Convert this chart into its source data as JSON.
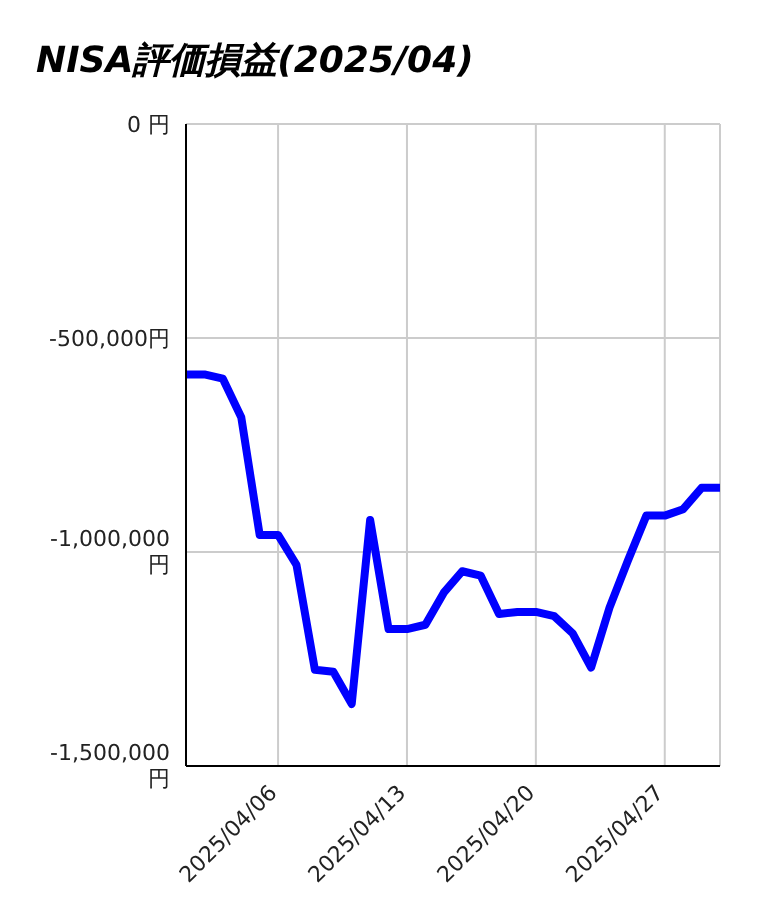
{
  "chart_data": {
    "type": "line",
    "title": "NISA評価損益(2025/04)",
    "x": [
      "2025-04-01",
      "2025-04-02",
      "2025-04-03",
      "2025-04-04",
      "2025-04-05",
      "2025-04-06",
      "2025-04-07",
      "2025-04-08",
      "2025-04-09",
      "2025-04-10",
      "2025-04-11",
      "2025-04-12",
      "2025-04-13",
      "2025-04-14",
      "2025-04-15",
      "2025-04-16",
      "2025-04-17",
      "2025-04-18",
      "2025-04-19",
      "2025-04-20",
      "2025-04-21",
      "2025-04-22",
      "2025-04-23",
      "2025-04-24",
      "2025-04-25",
      "2025-04-26",
      "2025-04-27",
      "2025-04-28",
      "2025-04-29",
      "2025-04-30"
    ],
    "series": [
      {
        "color": "#0000ff",
        "values": [
          -585000,
          -585000,
          -595000,
          -685000,
          -960000,
          -960000,
          -1030000,
          -1275000,
          -1280000,
          -1355000,
          -925000,
          -1180000,
          -1180000,
          -1170000,
          -1095000,
          -1045000,
          -1055000,
          -1145000,
          -1140000,
          -1140000,
          -1150000,
          -1190000,
          -1270000,
          -1130000,
          -1020000,
          -915000,
          -915000,
          -900000,
          -850000,
          -850000
        ]
      }
    ],
    "xlim": [
      "2025-04-01",
      "2025-04-30"
    ],
    "xticks": [
      {
        "value": "2025-04-06",
        "label": "2025/04/06"
      },
      {
        "value": "2025-04-13",
        "label": "2025/04/13"
      },
      {
        "value": "2025-04-20",
        "label": "2025/04/20"
      },
      {
        "value": "2025-04-27",
        "label": "2025/04/27"
      }
    ],
    "ylim": [
      -1500000,
      0
    ],
    "yticks": [
      {
        "value": 0,
        "label": "0 円"
      },
      {
        "value": -500000,
        "label": "-500,000円"
      },
      {
        "value": -1000000,
        "label": "-1,000,000円"
      },
      {
        "value": -1500000,
        "label": "-1,500,000円"
      }
    ],
    "grid": true,
    "marker": "none",
    "line_style": "solid",
    "legend": false
  }
}
